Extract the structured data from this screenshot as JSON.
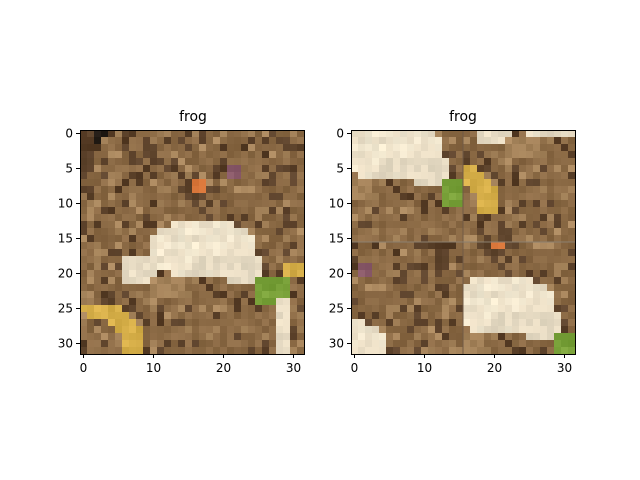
{
  "panels": [
    {
      "title": "frog",
      "image": "cifar-frog-original",
      "xticks": [
        "0",
        "10",
        "20",
        "30"
      ],
      "yticks": [
        "0",
        "5",
        "10",
        "15",
        "20",
        "25",
        "30"
      ]
    },
    {
      "title": "frog",
      "image": "cifar-frog-shuffled-quadrants",
      "xticks": [
        "0",
        "10",
        "20",
        "30"
      ],
      "yticks": [
        "0",
        "5",
        "10",
        "15",
        "20",
        "25",
        "30"
      ]
    }
  ],
  "colors": {
    "mud": "#8b6a45",
    "dark_mud": "#5a4029",
    "light_mud": "#a8865d",
    "frog_light": "#e8dcc4",
    "frog_cream": "#f2e8d0",
    "orange": "#d9763a",
    "green": "#7aa23a",
    "yellow": "#d8b04a",
    "purple": "#8a5a6a",
    "black": "#1a140f"
  }
}
